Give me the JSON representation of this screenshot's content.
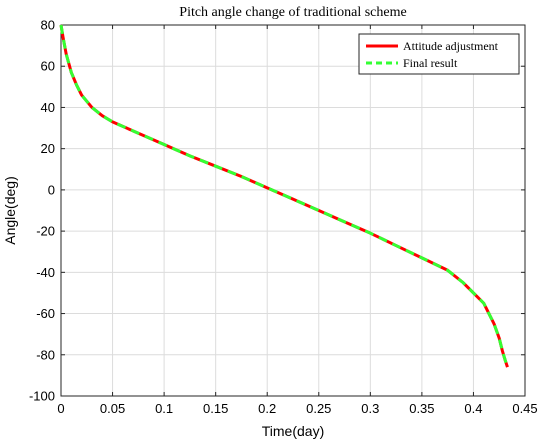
{
  "chart_data": {
    "type": "line",
    "title": "Pitch angle change of traditional scheme",
    "xlabel": "Time(day)",
    "ylabel": "Angle(deg)",
    "xlim": [
      0,
      0.45
    ],
    "ylim": [
      -100,
      80
    ],
    "xticks": [
      0,
      0.05,
      0.1,
      0.15,
      0.2,
      0.25,
      0.3,
      0.35,
      0.4,
      0.45
    ],
    "xtick_labels": [
      "0",
      "0.05",
      "0.1",
      "0.15",
      "0.2",
      "0.25",
      "0.3",
      "0.35",
      "0.4",
      "0.45"
    ],
    "yticks": [
      -100,
      -80,
      -60,
      -40,
      -20,
      0,
      20,
      40,
      60,
      80
    ],
    "ytick_labels": [
      "-100",
      "-80",
      "-60",
      "-40",
      "-20",
      "0",
      "20",
      "40",
      "60",
      "80"
    ],
    "grid": true,
    "legend_position": "top-right",
    "series": [
      {
        "name": "Attitude adjustment",
        "color": "#ff0000",
        "style": "solid",
        "x": [
          0,
          0.002,
          0.005,
          0.01,
          0.015,
          0.02,
          0.03,
          0.04,
          0.05,
          0.075,
          0.1,
          0.125,
          0.15,
          0.175,
          0.2,
          0.225,
          0.25,
          0.275,
          0.3,
          0.325,
          0.35,
          0.375,
          0.39,
          0.4,
          0.41,
          0.415,
          0.42,
          0.425,
          0.428,
          0.431,
          0.433
        ],
        "y": [
          80,
          74,
          66,
          57,
          51,
          46,
          40,
          36,
          33,
          27.5,
          22,
          16.5,
          11.5,
          6.5,
          1,
          -4.5,
          -10,
          -15.5,
          -21,
          -27,
          -33,
          -39,
          -45,
          -50,
          -55,
          -60,
          -65,
          -72,
          -78,
          -83,
          -86
        ]
      },
      {
        "name": "Final result",
        "color": "#33ff33",
        "style": "dashed",
        "x": [
          0,
          0.002,
          0.005,
          0.01,
          0.015,
          0.02,
          0.03,
          0.04,
          0.05,
          0.075,
          0.1,
          0.125,
          0.15,
          0.175,
          0.2,
          0.225,
          0.25,
          0.275,
          0.3,
          0.325,
          0.35,
          0.375,
          0.39,
          0.4,
          0.41,
          0.415,
          0.42,
          0.425,
          0.428,
          0.431,
          0.433
        ],
        "y": [
          80,
          74,
          66,
          57,
          51,
          46,
          40,
          36,
          33,
          27.5,
          22,
          16.5,
          11.5,
          6.5,
          1,
          -4.5,
          -10,
          -15.5,
          -21,
          -27,
          -33,
          -39,
          -45,
          -50,
          -55,
          -60,
          -65,
          -72,
          -78,
          -83,
          -86
        ]
      }
    ]
  }
}
